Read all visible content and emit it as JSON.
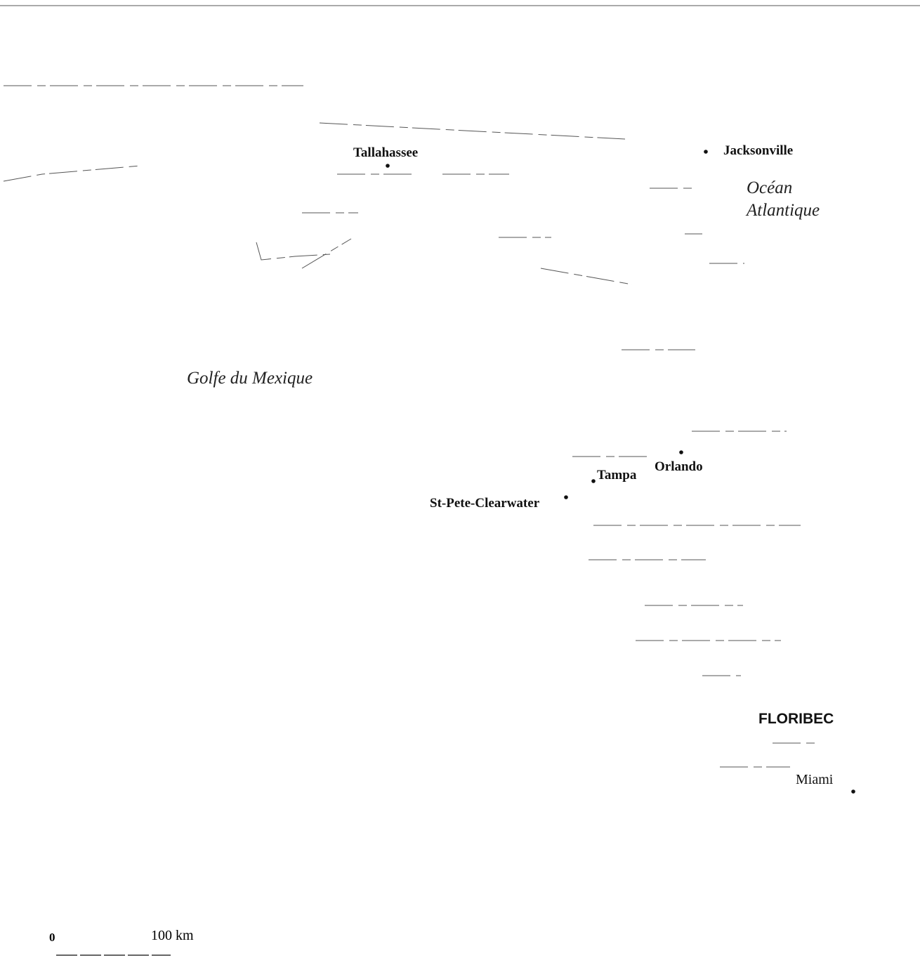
{
  "map": {
    "cities": [
      {
        "name": "Tallahassee"
      },
      {
        "name": "Jacksonville"
      },
      {
        "name": "Orlando"
      },
      {
        "name": "Tampa"
      },
      {
        "name": "St-Pete-Clearwater"
      },
      {
        "name": "Miami"
      }
    ],
    "gulf": "Golfe du Mexique",
    "ocean": [
      "Océan",
      "Atlantique"
    ],
    "region": "FLORIBEC",
    "scale": {
      "start": "0",
      "end": "100 km"
    }
  }
}
